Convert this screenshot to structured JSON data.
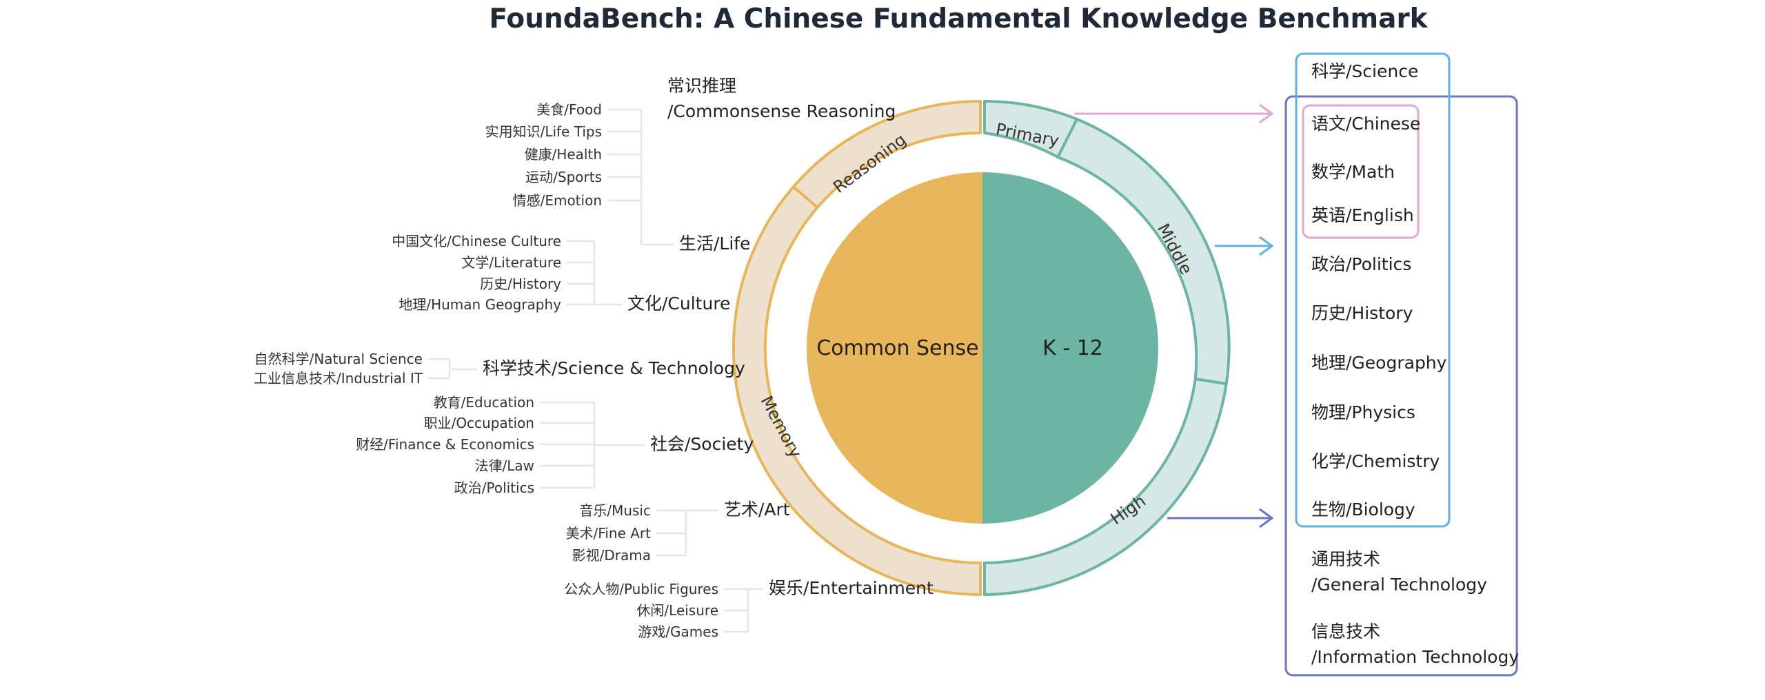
{
  "title": "FoundaBench: A Chinese Fundamental Knowledge Benchmark",
  "core": {
    "left": "Common Sense",
    "right": "K - 12"
  },
  "ring": {
    "reasoning": "Reasoning",
    "memory": "Memory",
    "primary": "Primary",
    "middle": "Middle",
    "high": "High"
  },
  "reasoning_category": {
    "line1": "常识推理",
    "line2": "/Commonsense Reasoning"
  },
  "memory_categories": [
    {
      "id": "life",
      "label": "生活/Life",
      "leaves": [
        "美食/Food",
        "实用知识/Life Tips",
        "健康/Health",
        "运动/Sports",
        "情感/Emotion"
      ]
    },
    {
      "id": "culture",
      "label": "文化/Culture",
      "leaves": [
        "中国文化/Chinese Culture",
        "文学/Literature",
        "历史/History",
        "地理/Human Geography"
      ]
    },
    {
      "id": "scitech",
      "label": "科学技术/Science & Technology",
      "leaves": [
        "自然科学/Natural Science",
        "工业信息技术/Industrial IT"
      ]
    },
    {
      "id": "society",
      "label": "社会/Society",
      "leaves": [
        "教育/Education",
        "职业/Occupation",
        "财经/Finance & Economics",
        "法律/Law",
        "政治/Politics"
      ]
    },
    {
      "id": "art",
      "label": "艺术/Art",
      "leaves": [
        "音乐/Music",
        "美术/Fine Art",
        "影视/Drama"
      ]
    },
    {
      "id": "entertainment",
      "label": "娱乐/Entertainment",
      "leaves": [
        "公众人物/Public Figures",
        "休闲/Leisure",
        "游戏/Games"
      ]
    }
  ],
  "subjects": {
    "science_header": "科学/Science",
    "list": [
      "语文/Chinese",
      "数学/Math",
      "英语/English",
      "政治/Politics",
      "历史/History",
      "地理/Geography",
      "物理/Physics",
      "化学/Chemistry",
      "生物/Biology"
    ],
    "general_tech": {
      "line1": "通用技术",
      "line2": "/General Technology"
    },
    "info_tech": {
      "line1": "信息技术",
      "line2": "/Information Technology"
    }
  },
  "colors": {
    "common_sense": "#e8b65a",
    "k12": "#6bb5a2",
    "memory_ring_fill": "#ede0cd",
    "memory_ring_stroke": "#e8b65a",
    "k12_ring_fill": "#d5e8e3",
    "k12_ring_stroke": "#6bb5a2",
    "primary_arrow": "#e2a6d3",
    "middle_arrow": "#5fb2e0",
    "high_arrow": "#6876c0",
    "bracket": "#e4e6e9"
  }
}
